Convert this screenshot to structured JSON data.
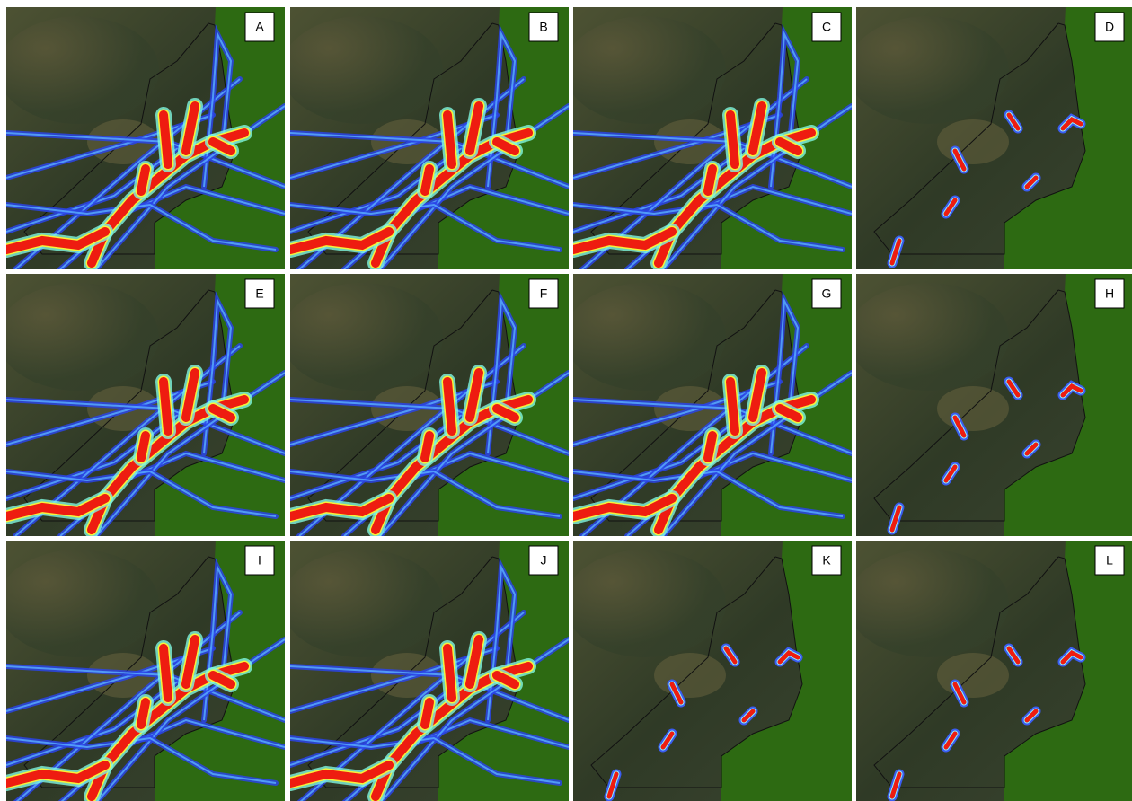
{
  "panels": [
    {
      "label": "A"
    },
    {
      "label": "B"
    },
    {
      "label": "C"
    },
    {
      "label": "D"
    },
    {
      "label": "E"
    },
    {
      "label": "F"
    },
    {
      "label": "G"
    },
    {
      "label": "H"
    },
    {
      "label": "I"
    },
    {
      "label": "J"
    },
    {
      "label": "K"
    },
    {
      "label": "L"
    }
  ]
}
